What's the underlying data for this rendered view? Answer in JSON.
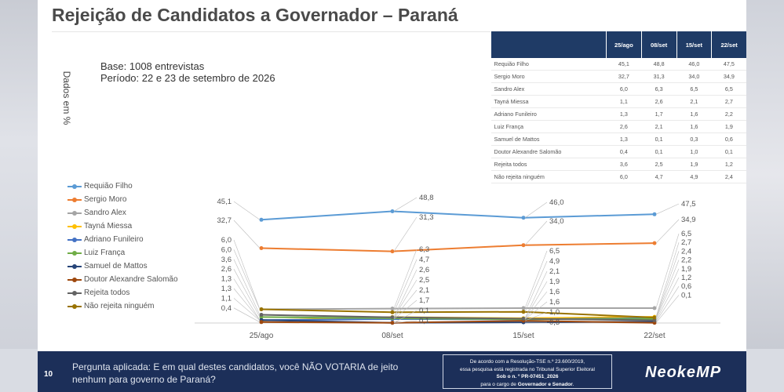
{
  "title": "Rejeição de Candidatos a Governador – Paraná",
  "base": "Base: 1008 entrevistas",
  "periodo": "Período: 22 e 23 de setembro de 2026",
  "yaxis_note": "Dados em %",
  "table": {
    "headers": [
      "",
      "25/ago",
      "08/set",
      "15/set",
      "22/set"
    ],
    "rows": [
      {
        "name": "Requião Filho",
        "values": [
          "45,1",
          "48,8",
          "46,0",
          "47,5"
        ]
      },
      {
        "name": "Sergio Moro",
        "values": [
          "32,7",
          "31,3",
          "34,0",
          "34,9"
        ]
      },
      {
        "name": "Sandro Alex",
        "values": [
          "6,0",
          "6,3",
          "6,5",
          "6,5"
        ]
      },
      {
        "name": "Tayná Miessa",
        "values": [
          "1,1",
          "2,6",
          "2,1",
          "2,7"
        ]
      },
      {
        "name": "Adriano Funileiro",
        "values": [
          "1,3",
          "1,7",
          "1,6",
          "2,2"
        ]
      },
      {
        "name": "Luiz França",
        "values": [
          "2,6",
          "2,1",
          "1,6",
          "1,9"
        ]
      },
      {
        "name": "Samuel de Mattos",
        "values": [
          "1,3",
          "0,1",
          "0,3",
          "0,6"
        ]
      },
      {
        "name": "Doutor Alexandre Salomão",
        "values": [
          "0,4",
          "0,1",
          "1,0",
          "0,1"
        ]
      },
      {
        "name": "Rejeita todos",
        "values": [
          "3,6",
          "2,5",
          "1,9",
          "1,2"
        ]
      },
      {
        "name": "Não rejeita ninguém",
        "values": [
          "6,0",
          "4,7",
          "4,9",
          "2,4"
        ]
      }
    ]
  },
  "chart_data": {
    "type": "line",
    "categories": [
      "25/ago",
      "08/set",
      "15/set",
      "22/set"
    ],
    "series": [
      {
        "name": "Requião Filho",
        "color": "#5b9bd5",
        "values": [
          45.1,
          48.8,
          46.0,
          47.5
        ]
      },
      {
        "name": "Sergio Moro",
        "color": "#ed7d31",
        "values": [
          32.7,
          31.3,
          34.0,
          34.9
        ]
      },
      {
        "name": "Sandro Alex",
        "color": "#a5a5a5",
        "values": [
          6.0,
          6.3,
          6.5,
          6.5
        ]
      },
      {
        "name": "Tayná Miessa",
        "color": "#ffc000",
        "values": [
          1.1,
          2.6,
          2.1,
          2.7
        ]
      },
      {
        "name": "Adriano Funileiro",
        "color": "#4472c4",
        "values": [
          1.3,
          1.7,
          1.6,
          2.2
        ]
      },
      {
        "name": "Luiz França",
        "color": "#70ad47",
        "values": [
          2.6,
          2.1,
          1.6,
          1.9
        ]
      },
      {
        "name": "Samuel de Mattos",
        "color": "#264478",
        "values": [
          1.3,
          0.1,
          0.3,
          0.6
        ]
      },
      {
        "name": "Doutor Alexandre Salomão",
        "color": "#9e480e",
        "values": [
          0.4,
          0.1,
          1.0,
          0.1
        ]
      },
      {
        "name": "Rejeita todos",
        "color": "#636363",
        "values": [
          3.6,
          2.5,
          1.9,
          1.2
        ]
      },
      {
        "name": "Não rejeita ninguém",
        "color": "#997300",
        "values": [
          6.0,
          4.7,
          4.9,
          2.4
        ]
      }
    ],
    "labels": [
      [
        "45,1",
        "32,7",
        "6,0",
        "6,0",
        "3,6",
        "2,6",
        "1,3",
        "1,3",
        "1,1",
        "0,4"
      ],
      [
        "48,8",
        "31,3",
        "6,3",
        "4,7",
        "2,6",
        "2,5",
        "2,1",
        "1,7",
        "0,1",
        "0,1"
      ],
      [
        "46,0",
        "34,0",
        "6,5",
        "4,9",
        "2,1",
        "1,9",
        "1,6",
        "1,6",
        "1,0",
        "0,3"
      ],
      [
        "47,5",
        "34,9",
        "6,5",
        "2,7",
        "2,4",
        "2,2",
        "1,9",
        "1,2",
        "0,6",
        "0,1"
      ]
    ],
    "legend_position": "left",
    "grid": false
  },
  "footer": {
    "page": "10",
    "question": "Pergunta aplicada: E em qual destes candidatos, você NÃO VOTARIA de jeito nenhum para governo de Paraná?",
    "box_line1": "De acordo com a Resolução-TSE n.º 23.600/2019,",
    "box_line2": "essa pesquisa está registrada no Tribunal Superior Eleitoral",
    "box_line3": "Sob o n. º PR-07451_2026",
    "box_line4a": "para o cargo de ",
    "box_line4b": "Governador e Senador",
    "logo": "NeokeMP"
  }
}
